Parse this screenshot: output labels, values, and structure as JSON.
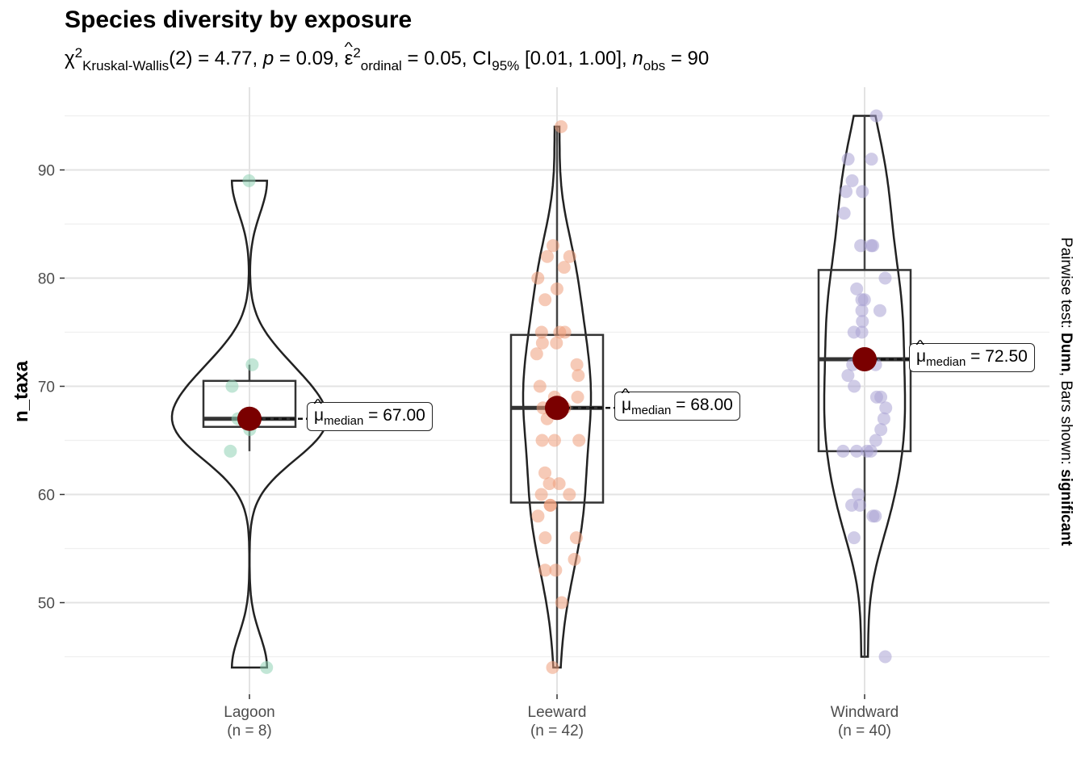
{
  "title": "Species diversity by exposure",
  "subtitle": {
    "chi": "χ",
    "chi_sup": "2",
    "chi_sub": "Kruskal-Wallis",
    "df_stat": "(2) = 4.77, ",
    "p_sym": "p",
    "p_val": " = 0.09, ",
    "eps": "ε",
    "eps_sup": "2",
    "eps_sub": "ordinal",
    "eps_val": " = 0.05, CI",
    "ci_sub": "95%",
    "ci_val": " [0.01, 1.00], ",
    "n_sym": "n",
    "n_sub": "obs",
    "n_val": " = 90"
  },
  "caption": {
    "prefix": "Pairwise test: ",
    "test": "Dunn",
    "middle": ", Bars shown: ",
    "shown": "significant"
  },
  "median_labels": [
    {
      "mu": "μ",
      "sub": "median",
      "value": " = 67.00"
    },
    {
      "mu": "μ",
      "sub": "median",
      "value": " = 68.00"
    },
    {
      "mu": "μ",
      "sub": "median",
      "value": " = 72.50"
    }
  ],
  "chart_data": {
    "type": "violin-box-scatter",
    "title": "Species diversity by exposure",
    "xlabel": "",
    "ylabel": "n_taxa",
    "ylim": [
      43,
      96
    ],
    "yticks": [
      50,
      60,
      70,
      80,
      90
    ],
    "grid": true,
    "categories": [
      "Lagoon",
      "Leeward",
      "Windward"
    ],
    "category_labels": [
      "Lagoon\n(n = 8)",
      "Leeward\n(n = 42)",
      "Windward\n(n = 40)"
    ],
    "n": [
      8,
      42,
      40
    ],
    "colors": [
      "#8fd1b5",
      "#ef9f7b",
      "#a9a2d4"
    ],
    "median_point_color": "#7a0000",
    "groups": [
      {
        "name": "Lagoon",
        "median": 67.0,
        "box": {
          "q1": 66.25,
          "median": 67.0,
          "q3": 70.5,
          "whisker_low": 64,
          "whisker_high": 72
        },
        "violin_range": [
          44,
          89
        ],
        "points": [
          89,
          72,
          70,
          67,
          67,
          66,
          64,
          44
        ]
      },
      {
        "name": "Leeward",
        "median": 68.0,
        "box": {
          "q1": 59.25,
          "median": 68.0,
          "q3": 74.75,
          "whisker_low": 44,
          "whisker_high": 94
        },
        "violin_range": [
          44,
          94
        ],
        "points": [
          94,
          83,
          82,
          82,
          81,
          80,
          79,
          78,
          75,
          75,
          75,
          74,
          74,
          73,
          72,
          71,
          70,
          69,
          69,
          68,
          68,
          68,
          68,
          67,
          65,
          65,
          65,
          62,
          61,
          61,
          60,
          60,
          59,
          59,
          58,
          56,
          56,
          54,
          53,
          53,
          50,
          44
        ]
      },
      {
        "name": "Windward",
        "median": 72.5,
        "box": {
          "q1": 64.0,
          "median": 72.5,
          "q3": 80.75,
          "whisker_low": 45,
          "whisker_high": 95
        },
        "violin_range": [
          45,
          95
        ],
        "points": [
          95,
          91,
          91,
          89,
          88,
          88,
          86,
          83,
          83,
          83,
          80,
          79,
          78,
          78,
          77,
          77,
          76,
          75,
          75,
          72,
          72,
          71,
          70,
          69,
          69,
          68,
          67,
          66,
          65,
          64,
          64,
          64,
          64,
          60,
          59,
          59,
          58,
          58,
          56,
          45
        ]
      }
    ]
  }
}
